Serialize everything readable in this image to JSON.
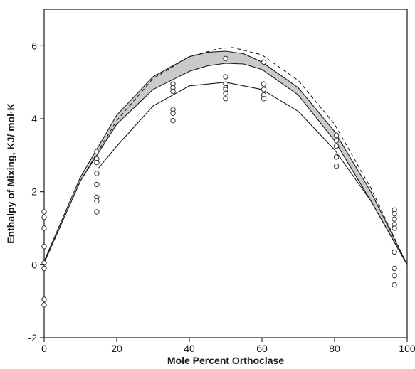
{
  "chart_data": {
    "type": "scatter",
    "title": "",
    "xlabel": "Mole Percent Orthoclase",
    "ylabel": "Enthalpy of Mixing, KJ/ mol·K",
    "xlim": [
      0,
      100
    ],
    "ylim": [
      -2,
      7
    ],
    "xticks": [
      "0",
      "20",
      "40",
      "60",
      "80",
      "100"
    ],
    "yticks": [
      "-2",
      "0",
      "2",
      "4",
      "6"
    ],
    "grid": false,
    "legend": "none",
    "colors": {
      "ink": "#1a1a1a",
      "band": "#bdbdbd",
      "marker": "#333333"
    },
    "points": [
      {
        "x": 0,
        "y": 1.45
      },
      {
        "x": 0,
        "y": 1.3
      },
      {
        "x": 0,
        "y": 1.0
      },
      {
        "x": 0,
        "y": 0.5
      },
      {
        "x": 0,
        "y": 0.05
      },
      {
        "x": 0,
        "y": -0.1
      },
      {
        "x": 0,
        "y": -0.95
      },
      {
        "x": 0,
        "y": -1.1
      },
      {
        "x": 14.5,
        "y": 3.1
      },
      {
        "x": 14.5,
        "y": 2.9
      },
      {
        "x": 14.5,
        "y": 2.8
      },
      {
        "x": 14.5,
        "y": 2.5
      },
      {
        "x": 14.5,
        "y": 2.2
      },
      {
        "x": 14.5,
        "y": 1.85
      },
      {
        "x": 14.5,
        "y": 1.75
      },
      {
        "x": 14.5,
        "y": 1.45
      },
      {
        "x": 35.5,
        "y": 4.95
      },
      {
        "x": 35.5,
        "y": 4.85
      },
      {
        "x": 35.5,
        "y": 4.75
      },
      {
        "x": 35.5,
        "y": 4.25
      },
      {
        "x": 35.5,
        "y": 4.15
      },
      {
        "x": 35.5,
        "y": 3.95
      },
      {
        "x": 50,
        "y": 5.65
      },
      {
        "x": 50,
        "y": 5.15
      },
      {
        "x": 50,
        "y": 4.95
      },
      {
        "x": 50,
        "y": 4.85
      },
      {
        "x": 50,
        "y": 4.8
      },
      {
        "x": 50,
        "y": 4.7
      },
      {
        "x": 50,
        "y": 4.55
      },
      {
        "x": 60.5,
        "y": 5.55
      },
      {
        "x": 60.5,
        "y": 4.95
      },
      {
        "x": 60.5,
        "y": 4.8
      },
      {
        "x": 60.5,
        "y": 4.65
      },
      {
        "x": 60.5,
        "y": 4.55
      },
      {
        "x": 80.5,
        "y": 3.55
      },
      {
        "x": 80.5,
        "y": 3.4
      },
      {
        "x": 80.5,
        "y": 3.25
      },
      {
        "x": 80.5,
        "y": 2.95
      },
      {
        "x": 80.5,
        "y": 2.7
      },
      {
        "x": 96.5,
        "y": 1.5
      },
      {
        "x": 96.5,
        "y": 1.4
      },
      {
        "x": 96.5,
        "y": 1.25
      },
      {
        "x": 96.5,
        "y": 1.1
      },
      {
        "x": 96.5,
        "y": 1.0
      },
      {
        "x": 96.5,
        "y": 0.35
      },
      {
        "x": 96.5,
        "y": -0.1
      },
      {
        "x": 96.5,
        "y": -0.3
      },
      {
        "x": 96.5,
        "y": -0.55
      }
    ],
    "curves": {
      "band_upper": [
        [
          0,
          0.1
        ],
        [
          10,
          2.4
        ],
        [
          20,
          4.1
        ],
        [
          30,
          5.15
        ],
        [
          40,
          5.7
        ],
        [
          45,
          5.82
        ],
        [
          50,
          5.85
        ],
        [
          55,
          5.78
        ],
        [
          60,
          5.55
        ],
        [
          70,
          4.85
        ],
        [
          80,
          3.65
        ],
        [
          90,
          2.0
        ],
        [
          100,
          0
        ]
      ],
      "band_lower": [
        [
          0,
          0.05
        ],
        [
          10,
          2.3
        ],
        [
          20,
          3.85
        ],
        [
          30,
          4.8
        ],
        [
          40,
          5.3
        ],
        [
          45,
          5.45
        ],
        [
          50,
          5.52
        ],
        [
          55,
          5.5
        ],
        [
          60,
          5.35
        ],
        [
          70,
          4.65
        ],
        [
          80,
          3.4
        ],
        [
          90,
          1.75
        ],
        [
          100,
          0
        ]
      ],
      "dashed": [
        [
          0,
          0.05
        ],
        [
          10,
          2.3
        ],
        [
          20,
          3.95
        ],
        [
          30,
          5.1
        ],
        [
          40,
          5.7
        ],
        [
          48,
          5.92
        ],
        [
          52,
          5.95
        ],
        [
          60,
          5.75
        ],
        [
          70,
          5.05
        ],
        [
          80,
          3.85
        ],
        [
          90,
          2.1
        ],
        [
          100,
          0
        ]
      ],
      "solid_lower": [
        [
          15,
          2.65
        ],
        [
          20,
          3.25
        ],
        [
          30,
          4.35
        ],
        [
          40,
          4.9
        ],
        [
          50,
          5.0
        ],
        [
          60,
          4.8
        ],
        [
          70,
          4.2
        ],
        [
          80,
          3.15
        ],
        [
          90,
          1.75
        ],
        [
          100,
          0
        ]
      ]
    }
  }
}
